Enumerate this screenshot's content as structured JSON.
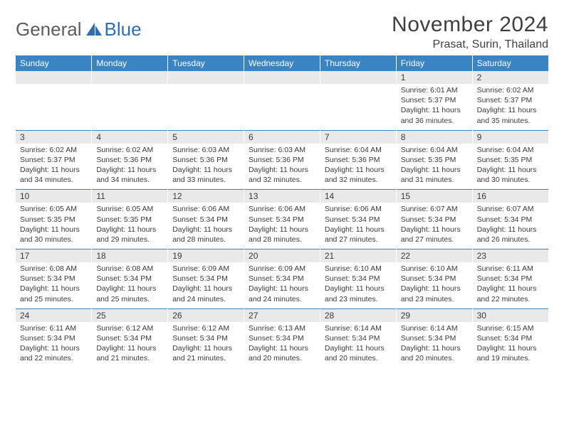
{
  "brand": {
    "text_general": "General",
    "text_blue": "Blue",
    "icon_color": "#2f6fb0"
  },
  "header": {
    "month_title": "November 2024",
    "location": "Prasat, Surin, Thailand"
  },
  "calendar": {
    "day_headers": [
      "Sunday",
      "Monday",
      "Tuesday",
      "Wednesday",
      "Thursday",
      "Friday",
      "Saturday"
    ],
    "header_bg": "#3b84c4",
    "header_fg": "#ffffff",
    "daynum_bg": "#e9e9ea",
    "border_color": "#3b84c4",
    "text_color": "#3a3a3a",
    "weeks": [
      [
        {
          "n": "",
          "body": ""
        },
        {
          "n": "",
          "body": ""
        },
        {
          "n": "",
          "body": ""
        },
        {
          "n": "",
          "body": ""
        },
        {
          "n": "",
          "body": ""
        },
        {
          "n": "1",
          "body": "Sunrise: 6:01 AM\nSunset: 5:37 PM\nDaylight: 11 hours and 36 minutes."
        },
        {
          "n": "2",
          "body": "Sunrise: 6:02 AM\nSunset: 5:37 PM\nDaylight: 11 hours and 35 minutes."
        }
      ],
      [
        {
          "n": "3",
          "body": "Sunrise: 6:02 AM\nSunset: 5:37 PM\nDaylight: 11 hours and 34 minutes."
        },
        {
          "n": "4",
          "body": "Sunrise: 6:02 AM\nSunset: 5:36 PM\nDaylight: 11 hours and 34 minutes."
        },
        {
          "n": "5",
          "body": "Sunrise: 6:03 AM\nSunset: 5:36 PM\nDaylight: 11 hours and 33 minutes."
        },
        {
          "n": "6",
          "body": "Sunrise: 6:03 AM\nSunset: 5:36 PM\nDaylight: 11 hours and 32 minutes."
        },
        {
          "n": "7",
          "body": "Sunrise: 6:04 AM\nSunset: 5:36 PM\nDaylight: 11 hours and 32 minutes."
        },
        {
          "n": "8",
          "body": "Sunrise: 6:04 AM\nSunset: 5:35 PM\nDaylight: 11 hours and 31 minutes."
        },
        {
          "n": "9",
          "body": "Sunrise: 6:04 AM\nSunset: 5:35 PM\nDaylight: 11 hours and 30 minutes."
        }
      ],
      [
        {
          "n": "10",
          "body": "Sunrise: 6:05 AM\nSunset: 5:35 PM\nDaylight: 11 hours and 30 minutes."
        },
        {
          "n": "11",
          "body": "Sunrise: 6:05 AM\nSunset: 5:35 PM\nDaylight: 11 hours and 29 minutes."
        },
        {
          "n": "12",
          "body": "Sunrise: 6:06 AM\nSunset: 5:34 PM\nDaylight: 11 hours and 28 minutes."
        },
        {
          "n": "13",
          "body": "Sunrise: 6:06 AM\nSunset: 5:34 PM\nDaylight: 11 hours and 28 minutes."
        },
        {
          "n": "14",
          "body": "Sunrise: 6:06 AM\nSunset: 5:34 PM\nDaylight: 11 hours and 27 minutes."
        },
        {
          "n": "15",
          "body": "Sunrise: 6:07 AM\nSunset: 5:34 PM\nDaylight: 11 hours and 27 minutes."
        },
        {
          "n": "16",
          "body": "Sunrise: 6:07 AM\nSunset: 5:34 PM\nDaylight: 11 hours and 26 minutes."
        }
      ],
      [
        {
          "n": "17",
          "body": "Sunrise: 6:08 AM\nSunset: 5:34 PM\nDaylight: 11 hours and 25 minutes."
        },
        {
          "n": "18",
          "body": "Sunrise: 6:08 AM\nSunset: 5:34 PM\nDaylight: 11 hours and 25 minutes."
        },
        {
          "n": "19",
          "body": "Sunrise: 6:09 AM\nSunset: 5:34 PM\nDaylight: 11 hours and 24 minutes."
        },
        {
          "n": "20",
          "body": "Sunrise: 6:09 AM\nSunset: 5:34 PM\nDaylight: 11 hours and 24 minutes."
        },
        {
          "n": "21",
          "body": "Sunrise: 6:10 AM\nSunset: 5:34 PM\nDaylight: 11 hours and 23 minutes."
        },
        {
          "n": "22",
          "body": "Sunrise: 6:10 AM\nSunset: 5:34 PM\nDaylight: 11 hours and 23 minutes."
        },
        {
          "n": "23",
          "body": "Sunrise: 6:11 AM\nSunset: 5:34 PM\nDaylight: 11 hours and 22 minutes."
        }
      ],
      [
        {
          "n": "24",
          "body": "Sunrise: 6:11 AM\nSunset: 5:34 PM\nDaylight: 11 hours and 22 minutes."
        },
        {
          "n": "25",
          "body": "Sunrise: 6:12 AM\nSunset: 5:34 PM\nDaylight: 11 hours and 21 minutes."
        },
        {
          "n": "26",
          "body": "Sunrise: 6:12 AM\nSunset: 5:34 PM\nDaylight: 11 hours and 21 minutes."
        },
        {
          "n": "27",
          "body": "Sunrise: 6:13 AM\nSunset: 5:34 PM\nDaylight: 11 hours and 20 minutes."
        },
        {
          "n": "28",
          "body": "Sunrise: 6:14 AM\nSunset: 5:34 PM\nDaylight: 11 hours and 20 minutes."
        },
        {
          "n": "29",
          "body": "Sunrise: 6:14 AM\nSunset: 5:34 PM\nDaylight: 11 hours and 20 minutes."
        },
        {
          "n": "30",
          "body": "Sunrise: 6:15 AM\nSunset: 5:34 PM\nDaylight: 11 hours and 19 minutes."
        }
      ]
    ]
  }
}
